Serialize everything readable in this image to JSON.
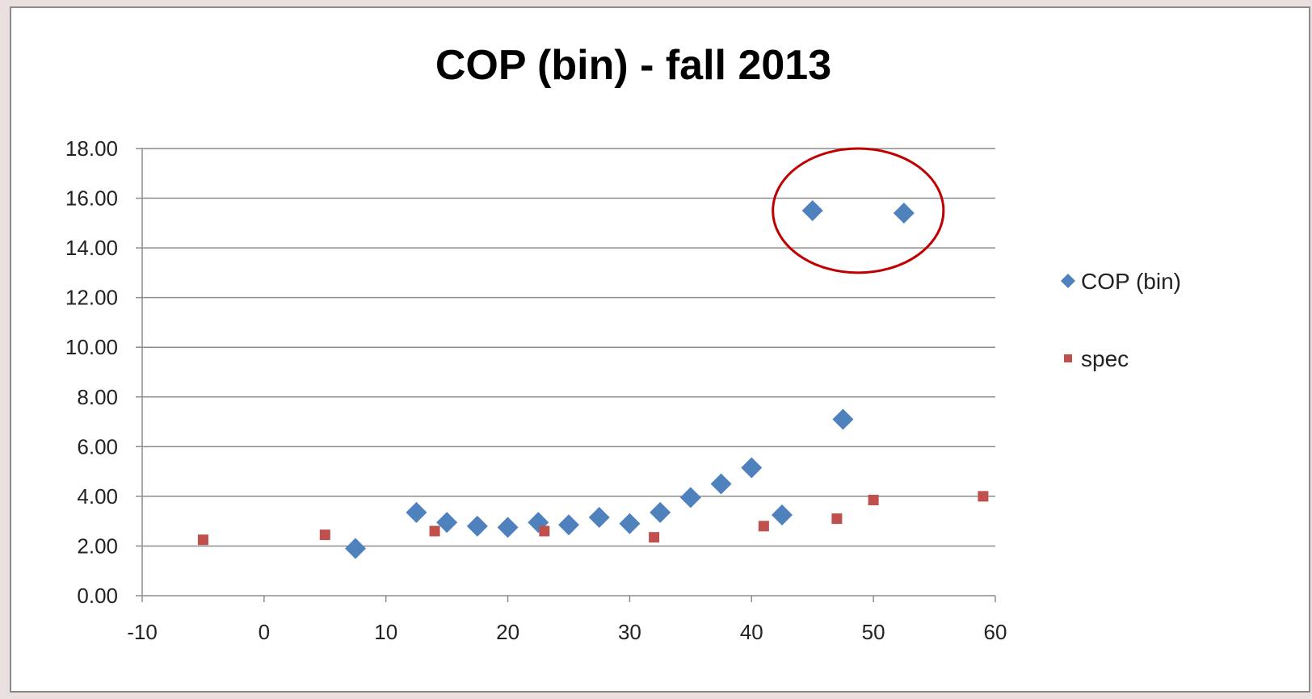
{
  "chart_data": {
    "type": "scatter",
    "title": "COP (bin) - fall 2013",
    "xlabel": "",
    "ylabel": "",
    "xlim": [
      -10,
      60
    ],
    "ylim": [
      0,
      18
    ],
    "x_ticks": [
      -10,
      0,
      10,
      20,
      30,
      40,
      50,
      60
    ],
    "y_ticks": [
      "0.00",
      "2.00",
      "4.00",
      "6.00",
      "8.00",
      "10.00",
      "12.00",
      "14.00",
      "16.00",
      "18.00"
    ],
    "grid": true,
    "legend_position": "right",
    "series": [
      {
        "name": "COP (bin)",
        "marker": "diamond",
        "color": "#4f81bd",
        "points": [
          {
            "x": 7.5,
            "y": 1.9
          },
          {
            "x": 12.5,
            "y": 3.35
          },
          {
            "x": 15,
            "y": 2.95
          },
          {
            "x": 17.5,
            "y": 2.8
          },
          {
            "x": 20,
            "y": 2.75
          },
          {
            "x": 22.5,
            "y": 2.95
          },
          {
            "x": 25,
            "y": 2.85
          },
          {
            "x": 27.5,
            "y": 3.15
          },
          {
            "x": 30,
            "y": 2.9
          },
          {
            "x": 32.5,
            "y": 3.35
          },
          {
            "x": 35,
            "y": 3.95
          },
          {
            "x": 37.5,
            "y": 4.5
          },
          {
            "x": 40,
            "y": 5.15
          },
          {
            "x": 42.5,
            "y": 3.25
          },
          {
            "x": 45,
            "y": 15.5
          },
          {
            "x": 47.5,
            "y": 7.1
          },
          {
            "x": 52.5,
            "y": 15.4
          }
        ]
      },
      {
        "name": "spec",
        "marker": "square",
        "color": "#c0504d",
        "points": [
          {
            "x": -5,
            "y": 2.25
          },
          {
            "x": 5,
            "y": 2.45
          },
          {
            "x": 14,
            "y": 2.6
          },
          {
            "x": 23,
            "y": 2.6
          },
          {
            "x": 32,
            "y": 2.35
          },
          {
            "x": 41,
            "y": 2.8
          },
          {
            "x": 47,
            "y": 3.1
          },
          {
            "x": 50,
            "y": 3.85
          },
          {
            "x": 59,
            "y": 4.0
          }
        ]
      }
    ],
    "annotations": [
      {
        "type": "ellipse",
        "color": "#c00000",
        "center_x": 48.75,
        "center_y": 15.5,
        "rx": 7.0,
        "ry": 2.5
      }
    ]
  }
}
